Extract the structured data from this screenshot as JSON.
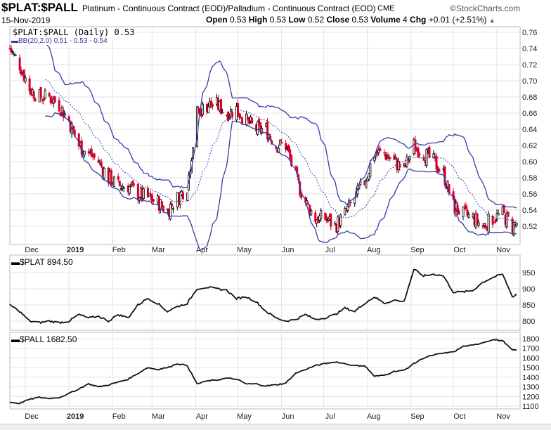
{
  "header": {
    "symbol": "$PLAT:$PALL",
    "description": "Platinum - Continuous Contract (EOD)/Palladium - Continuous Contract (EOD)",
    "exchange": "CME",
    "brand": "©StockCharts.com",
    "date": "15-Nov-2019",
    "open_label": "Open",
    "open": "0.53",
    "high_label": "High",
    "high": "0.53",
    "low_label": "Low",
    "low": "0.52",
    "close_label": "Close",
    "close": "0.53",
    "volume_label": "Volume",
    "volume": "4",
    "chg_label": "Chg",
    "chg": "+0.01 (+2.51%)"
  },
  "colors": {
    "up": "#000000",
    "down": "#d4002a",
    "bb": "#3a3aa8",
    "line": "#111111",
    "grid": "#e3e3e3"
  },
  "chart_data": [
    {
      "type": "candlestick",
      "legend": [
        "$PLAT:$PALL (Daily) 0.53",
        "BB(20,2.0) 0.51 - 0.53 - 0.54"
      ],
      "ylim": [
        0.5,
        0.77
      ],
      "yticks": [
        "0.76",
        "0.74",
        "0.72",
        "0.70",
        "0.68",
        "0.66",
        "0.64",
        "0.62",
        "0.60",
        "0.58",
        "0.56",
        "0.54",
        "0.52"
      ],
      "xticks": [
        "Dec",
        "2019",
        "Feb",
        "Mar",
        "Apr",
        "May",
        "Jun",
        "Jul",
        "Aug",
        "Sep",
        "Oct",
        "Nov"
      ],
      "weekly_close": [
        0.74,
        0.72,
        0.69,
        0.68,
        0.68,
        0.67,
        0.65,
        0.62,
        0.61,
        0.6,
        0.58,
        0.57,
        0.57,
        0.56,
        0.555,
        0.55,
        0.54,
        0.555,
        0.57,
        0.66,
        0.67,
        0.67,
        0.66,
        0.665,
        0.65,
        0.64,
        0.64,
        0.62,
        0.62,
        0.58,
        0.55,
        0.53,
        0.53,
        0.52,
        0.535,
        0.555,
        0.575,
        0.61,
        0.61,
        0.6,
        0.59,
        0.62,
        0.61,
        0.6,
        0.585,
        0.545,
        0.535,
        0.53,
        0.52,
        0.53,
        0.535,
        0.52,
        0.53
      ]
    },
    {
      "type": "line",
      "legend": "$PLAT 894.50",
      "ylim": [
        780,
        995
      ],
      "yticks": [
        "950",
        "900",
        "850",
        "800"
      ],
      "weekly_close": [
        850,
        830,
        800,
        795,
        800,
        795,
        800,
        820,
        810,
        815,
        800,
        820,
        810,
        850,
        870,
        855,
        830,
        845,
        855,
        900,
        905,
        900,
        895,
        870,
        875,
        860,
        830,
        810,
        800,
        805,
        820,
        805,
        810,
        820,
        840,
        830,
        855,
        875,
        855,
        865,
        860,
        960,
        940,
        945,
        940,
        890,
        890,
        895,
        920,
        935,
        945,
        875,
        894.5
      ]
    },
    {
      "type": "line",
      "legend": "$PALL 1682.50",
      "ylim": [
        1060,
        1820
      ],
      "yticks": [
        "1800",
        "1700",
        "1600",
        "1500",
        "1400",
        "1300",
        "1200",
        "1100"
      ],
      "xticks": [
        "Dec",
        "2019",
        "Feb",
        "Mar",
        "Apr",
        "May",
        "Jun",
        "Jul",
        "Aug",
        "Sep",
        "Oct",
        "Nov"
      ],
      "weekly_close": [
        1140,
        1130,
        1170,
        1190,
        1180,
        1190,
        1230,
        1280,
        1330,
        1300,
        1320,
        1350,
        1380,
        1440,
        1500,
        1480,
        1500,
        1540,
        1520,
        1330,
        1360,
        1370,
        1390,
        1380,
        1330,
        1330,
        1310,
        1320,
        1340,
        1440,
        1480,
        1520,
        1540,
        1560,
        1540,
        1520,
        1520,
        1410,
        1420,
        1460,
        1470,
        1540,
        1600,
        1630,
        1650,
        1660,
        1720,
        1730,
        1760,
        1790,
        1780,
        1680,
        1682.5
      ]
    }
  ]
}
